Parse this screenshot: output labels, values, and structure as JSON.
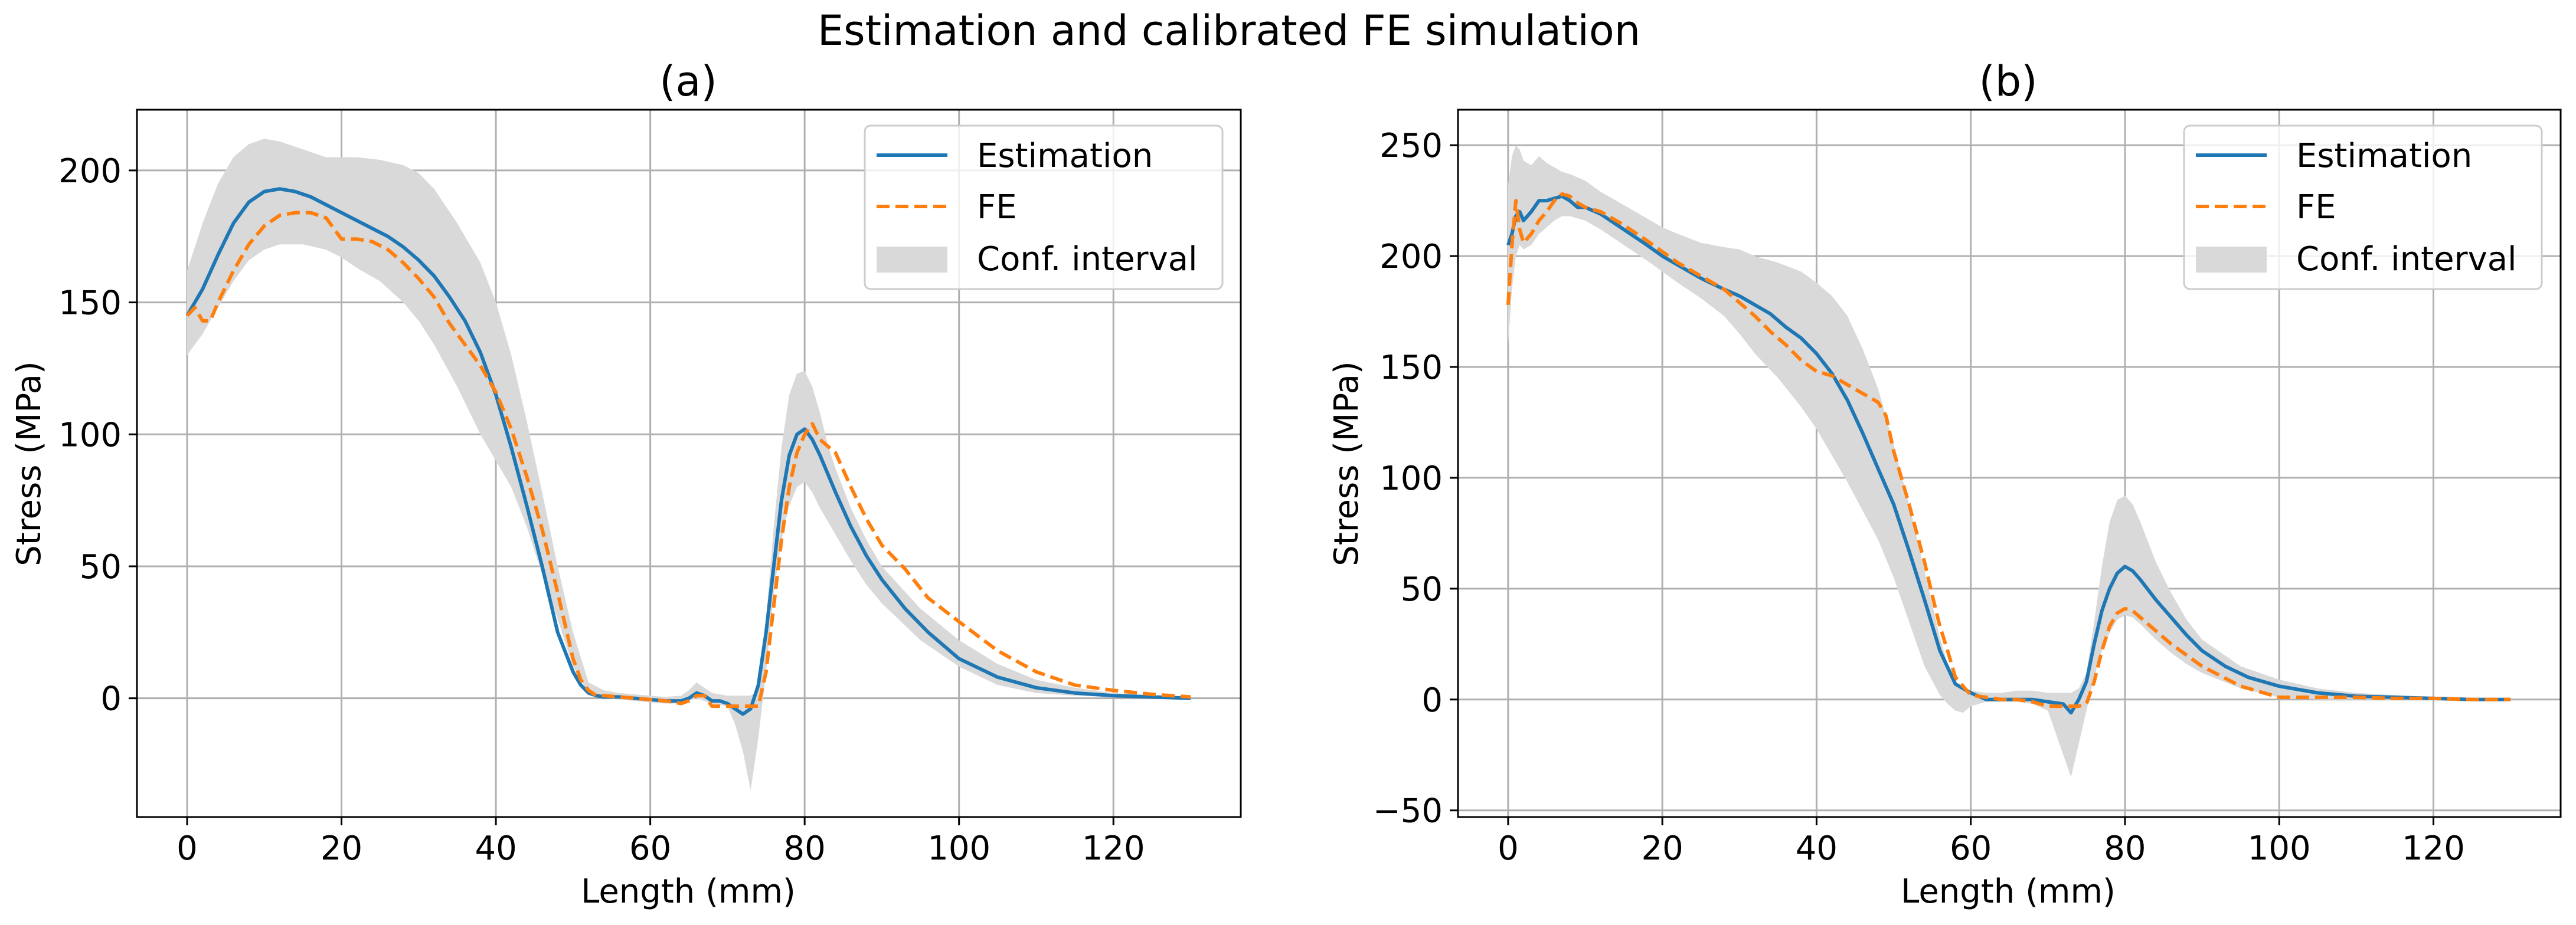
{
  "figure_title": "Estimation and calibrated FE simulation",
  "colors": {
    "estimation": "#1f77b4",
    "fe": "#ff7f0e",
    "band": "#d9d9d9",
    "grid": "#b0b0b0"
  },
  "chart_data": [
    {
      "type": "line",
      "title": "(a)",
      "xlabel": "Length (mm)",
      "ylabel": "Stress (MPa)",
      "xlim": [
        -6.5,
        136.5
      ],
      "ylim": [
        -45,
        223
      ],
      "xticks": [
        0,
        20,
        40,
        60,
        80,
        100,
        120
      ],
      "xtick_labels": [
        "0",
        "20",
        "40",
        "60",
        "80",
        "100",
        "120"
      ],
      "yticks": [
        0,
        50,
        100,
        150,
        200
      ],
      "ytick_labels": [
        "0",
        "50",
        "100",
        "150",
        "200"
      ],
      "grid": true,
      "legend_position": "top-right",
      "legend": [
        "Estimation",
        "FE",
        "Conf. interval"
      ],
      "series": [
        {
          "name": "Estimation",
          "style": "solid",
          "x": [
            0,
            2,
            4,
            6,
            8,
            10,
            12,
            14,
            16,
            18,
            20,
            22,
            24,
            26,
            28,
            30,
            32,
            34,
            36,
            38,
            40,
            42,
            44,
            46,
            48,
            50,
            51,
            52,
            53,
            54,
            56,
            58,
            60,
            62,
            64,
            65,
            66,
            67,
            68,
            69,
            70,
            71,
            72,
            73,
            74,
            75,
            76,
            77,
            78,
            79,
            80,
            81,
            82,
            84,
            86,
            88,
            90,
            93,
            96,
            100,
            105,
            110,
            115,
            120,
            125,
            130
          ],
          "y": [
            145,
            155,
            168,
            180,
            188,
            192,
            193,
            192,
            190,
            187,
            184,
            181,
            178,
            175,
            171,
            166,
            160,
            152,
            143,
            131,
            115,
            95,
            73,
            50,
            25,
            10,
            5,
            2,
            1,
            0.5,
            0.5,
            0,
            -0.5,
            -1,
            -1,
            0,
            2,
            1,
            -1,
            -1,
            -2,
            -4,
            -6,
            -4,
            5,
            25,
            50,
            75,
            92,
            100,
            102,
            98,
            92,
            78,
            65,
            54,
            45,
            34,
            25,
            15,
            8,
            4,
            2,
            1,
            0.5,
            0
          ]
        },
        {
          "name": "FE",
          "style": "dashed",
          "x": [
            0,
            1,
            2,
            3,
            4,
            6,
            8,
            10,
            12,
            14,
            16,
            18,
            19,
            20,
            22,
            24,
            26,
            28,
            30,
            32,
            34,
            36,
            38,
            40,
            42,
            44,
            46,
            48,
            50,
            51,
            52,
            53,
            54,
            56,
            58,
            60,
            62,
            64,
            65,
            66,
            67,
            68,
            70,
            72,
            73,
            74,
            75,
            76,
            77,
            78,
            79,
            80,
            81,
            82,
            84,
            86,
            88,
            90,
            93,
            96,
            100,
            105,
            110,
            115,
            120,
            125,
            130
          ],
          "y": [
            145,
            148,
            143,
            143,
            150,
            162,
            172,
            179,
            183,
            184,
            184,
            182,
            178,
            174,
            174,
            173,
            170,
            165,
            159,
            152,
            142,
            134,
            126,
            116,
            102,
            84,
            64,
            40,
            15,
            7,
            3,
            1,
            1,
            0.5,
            0,
            -0.5,
            -1,
            -2,
            -1,
            1,
            1,
            -3,
            -3,
            -3,
            -3,
            -3,
            10,
            35,
            60,
            80,
            93,
            100,
            104,
            98,
            93,
            80,
            68,
            58,
            49,
            38,
            29,
            18,
            10,
            5,
            3,
            1.5,
            0.5
          ]
        },
        {
          "name": "Conf. interval",
          "style": "band",
          "x": [
            0,
            2,
            4,
            6,
            8,
            10,
            12,
            15,
            18,
            20,
            22,
            25,
            28,
            30,
            32,
            35,
            38,
            40,
            42,
            44,
            46,
            48,
            50,
            52,
            54,
            56,
            58,
            60,
            62,
            64,
            65,
            66,
            67,
            68,
            70,
            71,
            72,
            73,
            74,
            75,
            76,
            77,
            78,
            79,
            80,
            81,
            82,
            83,
            84,
            86,
            88,
            90,
            95,
            100,
            105,
            110,
            115,
            120,
            125,
            130
          ],
          "lower": [
            130,
            138,
            148,
            158,
            166,
            170,
            172,
            172,
            170,
            167,
            163,
            158,
            150,
            143,
            134,
            118,
            100,
            90,
            80,
            65,
            47,
            30,
            12,
            2,
            0,
            -0.5,
            -1,
            -1.5,
            -2,
            -2,
            -1,
            0,
            -1,
            -2,
            -3,
            -10,
            -20,
            -35,
            -15,
            10,
            40,
            60,
            73,
            80,
            82,
            78,
            72,
            67,
            62,
            52,
            43,
            36,
            22,
            12,
            5,
            2,
            1,
            0.5,
            0,
            0
          ],
          "upper": [
            162,
            180,
            195,
            205,
            210,
            212,
            211,
            208,
            205,
            205,
            205,
            204,
            202,
            199,
            193,
            180,
            165,
            150,
            130,
            105,
            78,
            50,
            25,
            6,
            3,
            2,
            1.5,
            1,
            0.5,
            1,
            3,
            6,
            4,
            2,
            1,
            1,
            1,
            1,
            3,
            30,
            65,
            95,
            115,
            123,
            124,
            118,
            108,
            96,
            87,
            72,
            60,
            50,
            34,
            22,
            13,
            7,
            4,
            2,
            1,
            0.5
          ]
        }
      ]
    },
    {
      "type": "line",
      "title": "(b)",
      "xlabel": "Length (mm)",
      "ylabel": "Stress (MPa)",
      "xlim": [
        -6.5,
        136.5
      ],
      "ylim": [
        -53,
        266
      ],
      "xticks": [
        0,
        20,
        40,
        60,
        80,
        100,
        120
      ],
      "xtick_labels": [
        "0",
        "20",
        "40",
        "60",
        "80",
        "100",
        "120"
      ],
      "yticks": [
        -50,
        0,
        50,
        100,
        150,
        200,
        250
      ],
      "ytick_labels": [
        "−50",
        "0",
        "50",
        "100",
        "150",
        "200",
        "250"
      ],
      "grid": true,
      "legend_position": "top-right",
      "legend": [
        "Estimation",
        "FE",
        "Conf. interval"
      ],
      "series": [
        {
          "name": "Estimation",
          "style": "solid",
          "x": [
            0,
            0.5,
            1,
            1.5,
            2,
            3,
            4,
            5,
            6,
            7,
            8,
            9,
            10,
            12,
            15,
            18,
            20,
            22,
            25,
            28,
            30,
            32,
            34,
            36,
            38,
            40,
            42,
            44,
            46,
            48,
            50,
            52,
            54,
            56,
            58,
            60,
            62,
            64,
            66,
            68,
            70,
            72,
            73,
            74,
            75,
            76,
            77,
            78,
            79,
            80,
            81,
            82,
            84,
            86,
            88,
            90,
            93,
            96,
            100,
            105,
            110,
            115,
            120,
            125,
            130
          ],
          "y": [
            205,
            210,
            218,
            220,
            216,
            220,
            225,
            225,
            226,
            227,
            225,
            222,
            222,
            219,
            212,
            205,
            200,
            196,
            190,
            185,
            182,
            178,
            174,
            168,
            163,
            156,
            147,
            135,
            120,
            104,
            88,
            67,
            45,
            22,
            7,
            3,
            0,
            0,
            0,
            0,
            -1,
            -2,
            -6,
            0,
            8,
            25,
            40,
            50,
            57,
            60,
            58,
            54,
            45,
            37,
            29,
            22,
            15,
            10,
            6,
            3,
            1.5,
            1,
            0.5,
            0,
            0
          ]
        },
        {
          "name": "FE",
          "style": "dashed",
          "x": [
            0,
            0.5,
            1,
            1.5,
            2,
            3,
            4,
            5,
            6,
            7,
            8,
            9,
            10,
            12,
            15,
            18,
            20,
            22,
            25,
            28,
            30,
            32,
            34,
            36,
            38,
            40,
            42,
            44,
            46,
            48,
            49,
            50,
            51,
            52,
            53,
            54,
            55,
            56,
            57,
            58,
            60,
            62,
            64,
            66,
            68,
            70,
            72,
            73,
            74,
            75,
            76,
            77,
            78,
            79,
            80,
            81,
            82,
            84,
            86,
            88,
            90,
            95,
            100,
            105,
            110,
            115,
            120,
            125,
            130
          ],
          "y": [
            178,
            205,
            225,
            212,
            206,
            210,
            216,
            220,
            225,
            228,
            227,
            224,
            222,
            220,
            214,
            207,
            202,
            197,
            191,
            185,
            179,
            173,
            166,
            160,
            153,
            148,
            146,
            142,
            138,
            134,
            128,
            112,
            100,
            88,
            75,
            62,
            47,
            33,
            22,
            10,
            2,
            1,
            0,
            0,
            -1,
            -3,
            -3,
            -3,
            -3,
            -2,
            8,
            22,
            33,
            39,
            41,
            40,
            37,
            31,
            25,
            20,
            15,
            6,
            1,
            1,
            1,
            0.5,
            0.5,
            0,
            0
          ]
        },
        {
          "name": "Conf. interval",
          "style": "band",
          "x": [
            0,
            0.5,
            1,
            1.5,
            2,
            3,
            4,
            5,
            6,
            7,
            8,
            10,
            12,
            15,
            18,
            20,
            22,
            25,
            28,
            30,
            32,
            35,
            38,
            40,
            42,
            44,
            46,
            48,
            50,
            52,
            54,
            56,
            57,
            58,
            59,
            60,
            62,
            64,
            66,
            68,
            70,
            71,
            72,
            73,
            74,
            75,
            76,
            77,
            78,
            79,
            80,
            81,
            82,
            84,
            86,
            88,
            90,
            95,
            100,
            105,
            110,
            115,
            120,
            125,
            130
          ],
          "lower": [
            160,
            185,
            200,
            205,
            203,
            205,
            210,
            213,
            216,
            218,
            218,
            216,
            212,
            205,
            198,
            193,
            188,
            181,
            173,
            165,
            156,
            145,
            132,
            122,
            110,
            98,
            85,
            72,
            55,
            35,
            15,
            2,
            -2,
            -5,
            -6,
            -3,
            -1,
            -1,
            -1,
            -2,
            -5,
            -15,
            -25,
            -35,
            -20,
            -5,
            10,
            22,
            30,
            36,
            38,
            37,
            34,
            27,
            21,
            16,
            12,
            5,
            1,
            0,
            0,
            0,
            0,
            0,
            0
          ],
          "upper": [
            232,
            245,
            250,
            248,
            243,
            241,
            245,
            242,
            240,
            238,
            237,
            234,
            229,
            223,
            217,
            213,
            210,
            206,
            204,
            203,
            200,
            197,
            193,
            188,
            182,
            173,
            158,
            140,
            115,
            88,
            58,
            28,
            16,
            8,
            5,
            4,
            3,
            3,
            4,
            4,
            3,
            3,
            3,
            3,
            5,
            12,
            35,
            60,
            80,
            90,
            92,
            88,
            80,
            62,
            48,
            36,
            27,
            15,
            9,
            5,
            3,
            2,
            1,
            0.5,
            0
          ]
        }
      ]
    }
  ]
}
